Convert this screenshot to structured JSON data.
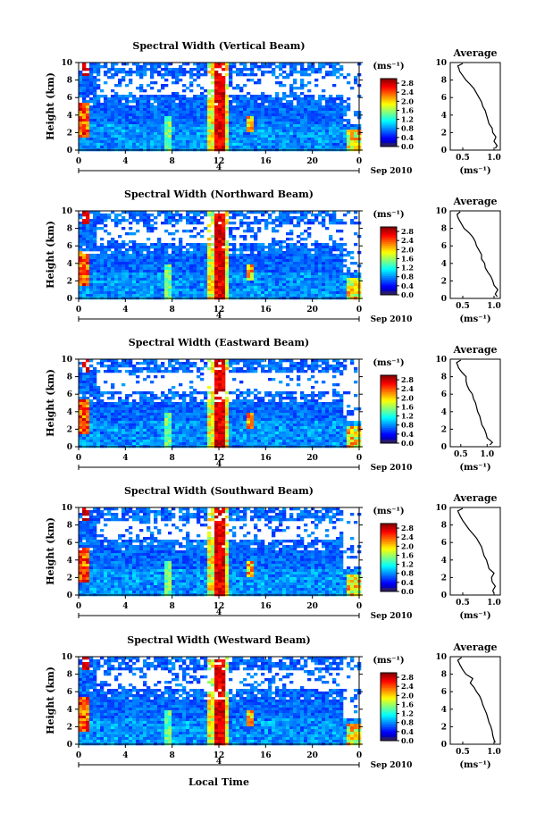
{
  "figure": {
    "xlabel": "Local Time",
    "date_label": "Sep 2010",
    "date_tick": "4",
    "ylabel": "Height (km)",
    "cb_unit": "(ms⁻¹)",
    "avg_xlabel": "(ms⁻¹)"
  },
  "chart_data": [
    {
      "type": "heatmap",
      "title": "Spectral Width (Vertical Beam)",
      "xticks": [
        "0",
        "4",
        "8",
        "12",
        "16",
        "20",
        "0"
      ],
      "xlim": [
        0,
        24
      ],
      "yticks": [
        "0",
        "2",
        "4",
        "6",
        "8",
        "10"
      ],
      "ylim": [
        0,
        10
      ],
      "colorbar": {
        "ticks": [
          "0.0",
          "0.4",
          "0.8",
          "1.2",
          "1.6",
          "2.0",
          "2.4",
          "2.8"
        ],
        "range": [
          0,
          3.0
        ]
      },
      "average": {
        "title": "Average",
        "xticks": [
          "0.5",
          "1.0"
        ],
        "xlim": [
          0.3,
          1.1
        ],
        "yticks": [
          "0",
          "2",
          "4",
          "6",
          "8",
          "10"
        ],
        "heights": [
          0.2,
          0.5,
          1,
          1.5,
          2,
          2.5,
          3,
          3.5,
          4,
          4.5,
          5,
          5.5,
          6,
          6.5,
          7,
          7.5,
          8,
          8.5,
          9,
          9.3,
          9.6,
          9.9
        ],
        "values": [
          1.02,
          1.05,
          1.0,
          1.03,
          0.98,
          0.97,
          0.92,
          0.9,
          0.88,
          0.86,
          0.82,
          0.8,
          0.76,
          0.72,
          0.68,
          0.62,
          0.55,
          0.5,
          0.45,
          0.44,
          0.42,
          0.5
        ]
      }
    },
    {
      "type": "heatmap",
      "title": "Spectral Width (Northward Beam)",
      "xticks": [
        "0",
        "4",
        "8",
        "12",
        "16",
        "20",
        "0"
      ],
      "xlim": [
        0,
        24
      ],
      "yticks": [
        "0",
        "2",
        "4",
        "6",
        "8",
        "10"
      ],
      "ylim": [
        0,
        10
      ],
      "colorbar": {
        "ticks": [
          "0.0",
          "0.4",
          "0.8",
          "1.2",
          "1.6",
          "2.0",
          "2.4",
          "2.8"
        ],
        "range": [
          0,
          3.0
        ]
      },
      "average": {
        "title": "Average",
        "xticks": [
          "0.5",
          "1.0"
        ],
        "xlim": [
          0.3,
          1.1
        ],
        "yticks": [
          "0",
          "2",
          "4",
          "6",
          "8",
          "10"
        ],
        "heights": [
          0.2,
          0.5,
          1,
          1.5,
          2,
          2.5,
          3,
          3.5,
          4,
          4.5,
          5,
          5.5,
          6,
          6.5,
          7,
          7.5,
          8,
          8.5,
          9,
          9.3,
          9.6,
          9.9
        ],
        "values": [
          1.05,
          1.02,
          1.06,
          1.0,
          0.98,
          0.95,
          0.9,
          0.86,
          0.85,
          0.8,
          0.8,
          0.76,
          0.72,
          0.7,
          0.66,
          0.6,
          0.52,
          0.48,
          0.44,
          0.42,
          0.41,
          0.46
        ]
      }
    },
    {
      "type": "heatmap",
      "title": "Spectral Width (Eastward Beam)",
      "xticks": [
        "0",
        "4",
        "8",
        "12",
        "16",
        "20",
        "0"
      ],
      "xlim": [
        0,
        24
      ],
      "yticks": [
        "0",
        "2",
        "4",
        "6",
        "8",
        "10"
      ],
      "ylim": [
        0,
        10
      ],
      "colorbar": {
        "ticks": [
          "0.0",
          "0.4",
          "0.8",
          "1.2",
          "1.6",
          "2.0",
          "2.4",
          "2.8"
        ],
        "range": [
          0,
          3.0
        ]
      },
      "average": {
        "title": "Average",
        "xticks": [
          "0.5",
          "1.0"
        ],
        "xlim": [
          0.3,
          1.25
        ],
        "yticks": [
          "0",
          "2",
          "4",
          "6",
          "8",
          "10"
        ],
        "heights": [
          0.2,
          0.5,
          1,
          1.5,
          2,
          2.5,
          3,
          3.5,
          4,
          4.5,
          5,
          5.5,
          6,
          6.5,
          7,
          7.5,
          8,
          8.5,
          9,
          9.3,
          9.6,
          9.9
        ],
        "values": [
          1.05,
          1.1,
          1.0,
          0.98,
          0.95,
          0.9,
          0.88,
          0.86,
          0.82,
          0.8,
          0.78,
          0.74,
          0.72,
          0.66,
          0.62,
          0.6,
          0.6,
          0.52,
          0.46,
          0.44,
          0.42,
          0.5
        ]
      }
    },
    {
      "type": "heatmap",
      "title": "Spectral Width (Southward Beam)",
      "xticks": [
        "0",
        "4",
        "8",
        "12",
        "16",
        "20",
        "0"
      ],
      "xlim": [
        0,
        24
      ],
      "yticks": [
        "0",
        "2",
        "4",
        "6",
        "8",
        "10"
      ],
      "ylim": [
        0,
        10
      ],
      "colorbar": {
        "ticks": [
          "0.0",
          "0.4",
          "0.8",
          "1.2",
          "1.6",
          "2.0",
          "2.4",
          "2.8"
        ],
        "range": [
          0,
          3.0
        ]
      },
      "average": {
        "title": "Average",
        "xticks": [
          "0.5",
          "1.0"
        ],
        "xlim": [
          0.3,
          1.1
        ],
        "yticks": [
          "0",
          "2",
          "4",
          "6",
          "8",
          "10"
        ],
        "heights": [
          0.2,
          0.5,
          1,
          1.5,
          2,
          2.5,
          3,
          3.5,
          4,
          4.5,
          5,
          5.5,
          6,
          6.5,
          7,
          7.5,
          8,
          8.5,
          9,
          9.3,
          9.6,
          9.9
        ],
        "values": [
          1.0,
          0.98,
          1.02,
          0.97,
          0.96,
          1.0,
          0.92,
          0.9,
          0.88,
          0.84,
          0.82,
          0.8,
          0.76,
          0.72,
          0.66,
          0.6,
          0.55,
          0.5,
          0.46,
          0.44,
          0.42,
          0.5
        ]
      }
    },
    {
      "type": "heatmap",
      "title": "Spectral Width (Westward Beam)",
      "xticks": [
        "0",
        "4",
        "8",
        "12",
        "16",
        "20",
        "0"
      ],
      "xlim": [
        0,
        24
      ],
      "yticks": [
        "0",
        "2",
        "4",
        "6",
        "8",
        "10"
      ],
      "ylim": [
        0,
        10
      ],
      "colorbar": {
        "ticks": [
          "0.0",
          "0.4",
          "0.8",
          "1.2",
          "1.6",
          "2.0",
          "2.4",
          "2.8"
        ],
        "range": [
          0,
          3.0
        ]
      },
      "average": {
        "title": "Average",
        "xticks": [
          "0.5",
          "1.0"
        ],
        "xlim": [
          0.3,
          1.1
        ],
        "yticks": [
          "0",
          "2",
          "4",
          "6",
          "8",
          "10"
        ],
        "heights": [
          0.2,
          0.5,
          1,
          1.5,
          2,
          2.5,
          3,
          3.5,
          4,
          4.5,
          5,
          5.5,
          6,
          6.5,
          7,
          7.5,
          8,
          8.5,
          9,
          9.3,
          9.6,
          9.9
        ],
        "values": [
          1.02,
          1.0,
          0.98,
          0.97,
          0.95,
          0.92,
          0.9,
          0.88,
          0.85,
          0.82,
          0.8,
          0.77,
          0.72,
          0.68,
          0.62,
          0.66,
          0.55,
          0.5,
          0.46,
          0.44,
          0.42,
          0.48
        ]
      }
    }
  ]
}
